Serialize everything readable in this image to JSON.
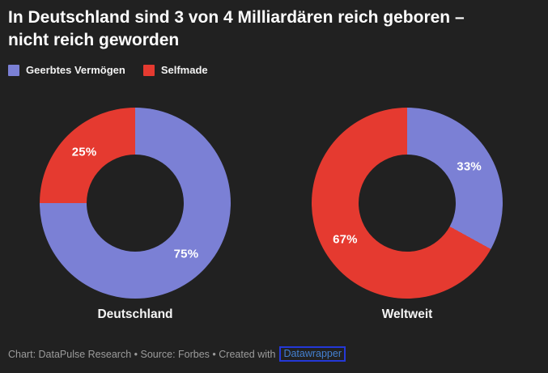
{
  "header": {
    "title": "In Deutschland sind 3 von 4 Milliardären reich geboren –\nnicht reich geworden"
  },
  "legend": {
    "items": [
      {
        "label": "Geerbtes Vermögen",
        "color": "#7b80d5"
      },
      {
        "label": "Selfmade",
        "color": "#e53a30"
      }
    ]
  },
  "chart_data": [
    {
      "type": "pie",
      "donut": true,
      "title": "Deutschland",
      "slices": [
        {
          "label": "Geerbtes Vermögen",
          "value": 75,
          "display": "75%",
          "color": "#7b80d5"
        },
        {
          "label": "Selfmade",
          "value": 25,
          "display": "25%",
          "color": "#e53a30"
        }
      ]
    },
    {
      "type": "pie",
      "donut": true,
      "title": "Weltweit",
      "slices": [
        {
          "label": "Geerbtes Vermögen",
          "value": 33,
          "display": "33%",
          "color": "#7b80d5"
        },
        {
          "label": "Selfmade",
          "value": 67,
          "display": "67%",
          "color": "#e53a30"
        }
      ]
    }
  ],
  "footer": {
    "attribution": "Chart: DataPulse Research • Source: Forbes • Created with",
    "link_label": "Datawrapper",
    "link_color": "#4480d0",
    "outline_color": "#2438d8"
  },
  "colors": {
    "background": "#212121",
    "title_text": "#fdfdfd",
    "percent_label_text": "#ffffff",
    "footer_text": "#9c9c9c"
  }
}
